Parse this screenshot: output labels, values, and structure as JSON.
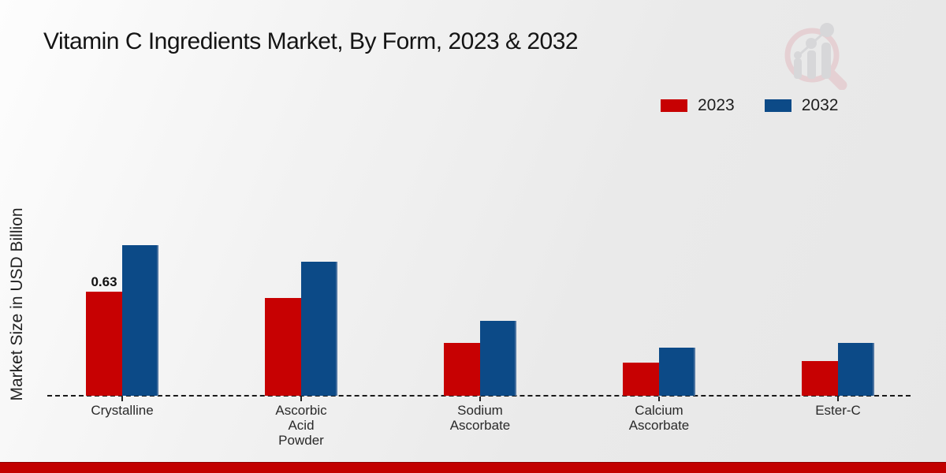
{
  "header": {
    "title": "Vitamin C Ingredients Market, By Form, 2023 & 2032"
  },
  "legend": {
    "items": [
      {
        "label": "2023",
        "color": "#c70102"
      },
      {
        "label": "2032",
        "color": "#0c4a87"
      }
    ]
  },
  "chart_data": {
    "type": "bar",
    "title": "Vitamin C Ingredients Market, By Form, 2023 & 2032",
    "xlabel": "",
    "ylabel": "Market Size in USD Billion",
    "categories": [
      "Crystalline",
      "Ascorbic Acid Powder",
      "Sodium Ascorbate",
      "Calcium Ascorbate",
      "Ester-C"
    ],
    "category_label_lines": [
      [
        "Crystalline"
      ],
      [
        "Ascorbic",
        "Acid",
        "Powder"
      ],
      [
        "Sodium",
        "Ascorbate"
      ],
      [
        "Calcium",
        "Ascorbate"
      ],
      [
        "Ester-C"
      ]
    ],
    "series": [
      {
        "name": "2023",
        "color": "#c70102",
        "values": [
          0.63,
          0.59,
          0.32,
          0.2,
          0.21
        ]
      },
      {
        "name": "2032",
        "color": "#0c4a87",
        "values": [
          0.91,
          0.81,
          0.45,
          0.29,
          0.32
        ]
      }
    ],
    "data_labels": [
      {
        "series": "2023",
        "category_index": 0,
        "text": "0.63"
      }
    ],
    "ylim": [
      0,
      1.0
    ],
    "grid": false,
    "legend_position": "top-right",
    "baseline_style": "dashed",
    "y_axis_ticks_visible": false
  },
  "branding": {
    "watermark_icon": "magnifier-bar-chart-logo",
    "accent_bar_color": "#c20000"
  }
}
